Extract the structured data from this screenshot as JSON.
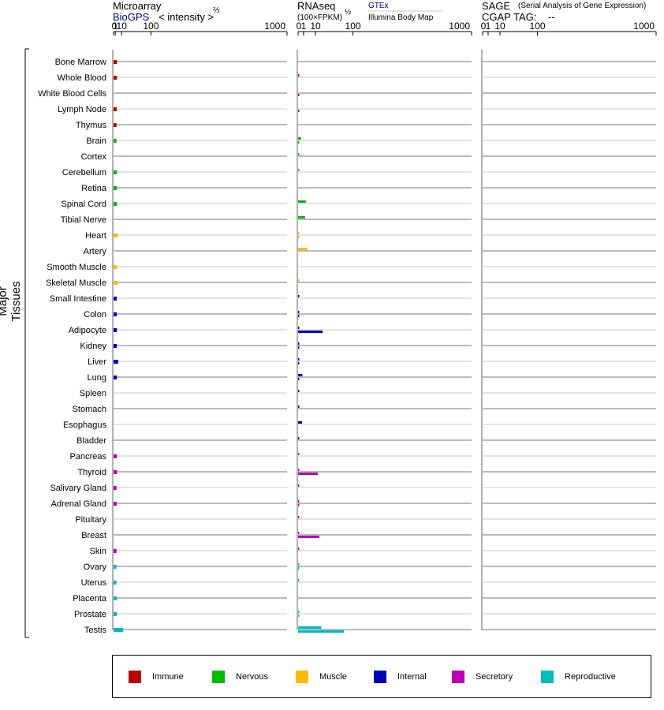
{
  "headers": {
    "microarray_title": "Microarray",
    "microarray_source": "BioGPS",
    "microarray_units": "< intensity >",
    "microarray_exp": "⅔",
    "rnaseq_title": "RNAseq",
    "rnaseq_units": "(100×FPKM)",
    "rnaseq_exp": "½",
    "rnaseq_source1": "GTEx",
    "rnaseq_source2": "Illumina Body Map",
    "sage_title": "SAGE",
    "sage_desc": "(Serial Analysis of Gene Expression)",
    "cgap_label": "CGAP TAG:",
    "cgap_value": "--"
  },
  "y_axis_label": "Major Tissues",
  "legend": [
    {
      "label": "Immune",
      "color": "#bb0000"
    },
    {
      "label": "Nervous",
      "color": "#00bb00"
    },
    {
      "label": "Muscle",
      "color": "#ffbb00"
    },
    {
      "label": "Internal",
      "color": "#0000bb"
    },
    {
      "label": "Secretory",
      "color": "#bb00bb"
    },
    {
      "label": "Reproductive",
      "color": "#00bbbb"
    }
  ],
  "chart_data": [
    {
      "type": "bar",
      "title": "Microarray",
      "tick_labels": [
        "0",
        "1",
        "10",
        "100",
        "1000"
      ],
      "scale": "power 2/3",
      "xlim": [
        0,
        1000
      ],
      "categories": [
        "Bone Marrow",
        "Whole Blood",
        "White Blood Cells",
        "Lymph Node",
        "Thymus",
        "Brain",
        "Cortex",
        "Cerebellum",
        "Retina",
        "Spinal Cord",
        "Tibial Nerve",
        "Heart",
        "Artery",
        "Smooth Muscle",
        "Skeletal Muscle",
        "Small Intestine",
        "Colon",
        "Adipocyte",
        "Kidney",
        "Liver",
        "Lung",
        "Spleen",
        "Stomach",
        "Esophagus",
        "Bladder",
        "Pancreas",
        "Thyroid",
        "Salivary Gland",
        "Adrenal Gland",
        "Pituitary",
        "Breast",
        "Skin",
        "Ovary",
        "Uterus",
        "Placenta",
        "Prostate",
        "Testis"
      ],
      "groups": [
        "Immune",
        "Immune",
        "Immune",
        "Immune",
        "Immune",
        "Nervous",
        "Nervous",
        "Nervous",
        "Nervous",
        "Nervous",
        "Nervous",
        "Muscle",
        "Muscle",
        "Muscle",
        "Muscle",
        "Internal",
        "Internal",
        "Internal",
        "Internal",
        "Internal",
        "Internal",
        "Internal",
        "Internal",
        "Internal",
        "Internal",
        "Secretory",
        "Secretory",
        "Secretory",
        "Secretory",
        "Secretory",
        "Secretory",
        "Secretory",
        "Reproductive",
        "Reproductive",
        "Reproductive",
        "Reproductive",
        "Reproductive"
      ],
      "values": [
        2.7,
        2.7,
        null,
        2.4,
        2.2,
        2.2,
        null,
        2.6,
        2.6,
        2.6,
        null,
        3.5,
        null,
        2.8,
        4.0,
        2.5,
        2.6,
        2.7,
        2.5,
        4.3,
        2.6,
        null,
        null,
        null,
        null,
        2.7,
        2.8,
        2.2,
        2.4,
        null,
        null,
        2.2,
        2.1,
        2.1,
        2.6,
        2.7,
        13.0
      ]
    },
    {
      "type": "bar",
      "title": "RNAseq",
      "tick_labels": [
        "0",
        "1",
        "10",
        "100",
        "1000"
      ],
      "scale": "power 1/2",
      "xlim": [
        0,
        1000
      ],
      "series": [
        {
          "name": "GTEx",
          "values": [
            null,
            0.03,
            null,
            null,
            null,
            0.3,
            0.02,
            0.03,
            null,
            2.0,
            1.6,
            0.03,
            2.8,
            null,
            0.02,
            0.04,
            0.04,
            0.05,
            0.04,
            0.03,
            0.6,
            0.03,
            0.05,
            0.5,
            0.04,
            0.03,
            0.03,
            0.02,
            0.02,
            0.03,
            0.02,
            0.02,
            0.01,
            0.01,
            null,
            0.02,
            18
          ]
        },
        {
          "name": "Illumina Body Map",
          "values": [
            null,
            null,
            0.03,
            0.03,
            null,
            0.01,
            null,
            null,
            null,
            null,
            null,
            0.02,
            null,
            null,
            null,
            null,
            0.03,
            20,
            0.02,
            0.02,
            0.03,
            null,
            null,
            null,
            null,
            null,
            13,
            null,
            0.02,
            null,
            15,
            null,
            0.01,
            null,
            null,
            0.01,
            70
          ]
        }
      ]
    },
    {
      "type": "bar",
      "title": "SAGE",
      "tick_labels": [
        "0",
        "1",
        "10",
        "100",
        "1000"
      ],
      "scale": "power 1/2",
      "xlim": [
        0,
        1000
      ],
      "values": []
    }
  ]
}
